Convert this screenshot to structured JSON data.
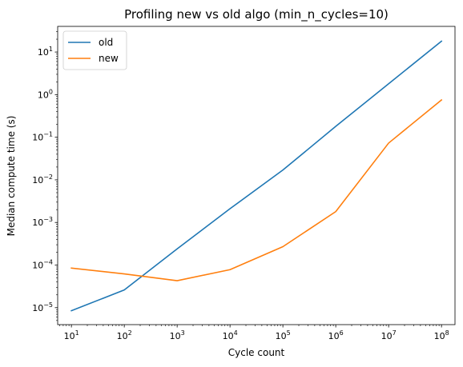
{
  "chart_data": {
    "type": "line",
    "title": "Profiling new vs old algo (min_n_cycles=10)",
    "xlabel": "Cycle count",
    "ylabel": "Median compute time (s)",
    "x_scale": "log",
    "y_scale": "log",
    "xlim": [
      5.5,
      180000000
    ],
    "ylim": [
      4e-06,
      40
    ],
    "x_ticks": [
      {
        "value": 10,
        "label": "10",
        "exp": "1"
      },
      {
        "value": 100,
        "label": "10",
        "exp": "2"
      },
      {
        "value": 1000,
        "label": "10",
        "exp": "3"
      },
      {
        "value": 10000,
        "label": "10",
        "exp": "4"
      },
      {
        "value": 100000,
        "label": "10",
        "exp": "5"
      },
      {
        "value": 1000000,
        "label": "10",
        "exp": "6"
      },
      {
        "value": 10000000,
        "label": "10",
        "exp": "7"
      },
      {
        "value": 100000000,
        "label": "10",
        "exp": "8"
      }
    ],
    "y_ticks": [
      {
        "value": 1e-05,
        "label": "10",
        "exp": "−5"
      },
      {
        "value": 0.0001,
        "label": "10",
        "exp": "−4"
      },
      {
        "value": 0.001,
        "label": "10",
        "exp": "−3"
      },
      {
        "value": 0.01,
        "label": "10",
        "exp": "−2"
      },
      {
        "value": 0.1,
        "label": "10",
        "exp": "−1"
      },
      {
        "value": 1,
        "label": "10",
        "exp": "0"
      },
      {
        "value": 10,
        "label": "10",
        "exp": "1"
      }
    ],
    "grid": false,
    "legend_position": "top-left",
    "x": [
      10,
      100,
      1000,
      10000,
      100000,
      1000000,
      10000000,
      100000000
    ],
    "series": [
      {
        "name": "old",
        "color": "#1f77b4",
        "values": [
          8.5e-06,
          2.6e-05,
          0.00024,
          0.0021,
          0.017,
          0.18,
          1.8,
          18
        ]
      },
      {
        "name": "new",
        "color": "#ff7f0e",
        "values": [
          8.5e-05,
          6.2e-05,
          4.3e-05,
          7.8e-05,
          0.00027,
          0.0018,
          0.073,
          0.75
        ]
      }
    ]
  }
}
